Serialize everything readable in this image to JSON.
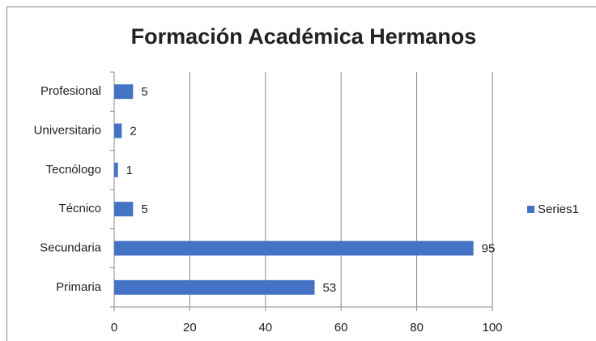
{
  "chart_data": {
    "type": "bar",
    "orientation": "horizontal",
    "title": "Formación Académica Hermanos",
    "categories": [
      "Profesional",
      "Universitario",
      "Tecnólogo",
      "Técnico",
      "Secundaria",
      "Primaria"
    ],
    "series": [
      {
        "name": "Series1",
        "color": "#4472c4",
        "values": [
          5,
          2,
          1,
          5,
          95,
          53
        ]
      }
    ],
    "xlim": [
      0,
      100
    ],
    "xticks": [
      0,
      20,
      40,
      60,
      80,
      100
    ],
    "grid": true,
    "legend": "right"
  }
}
